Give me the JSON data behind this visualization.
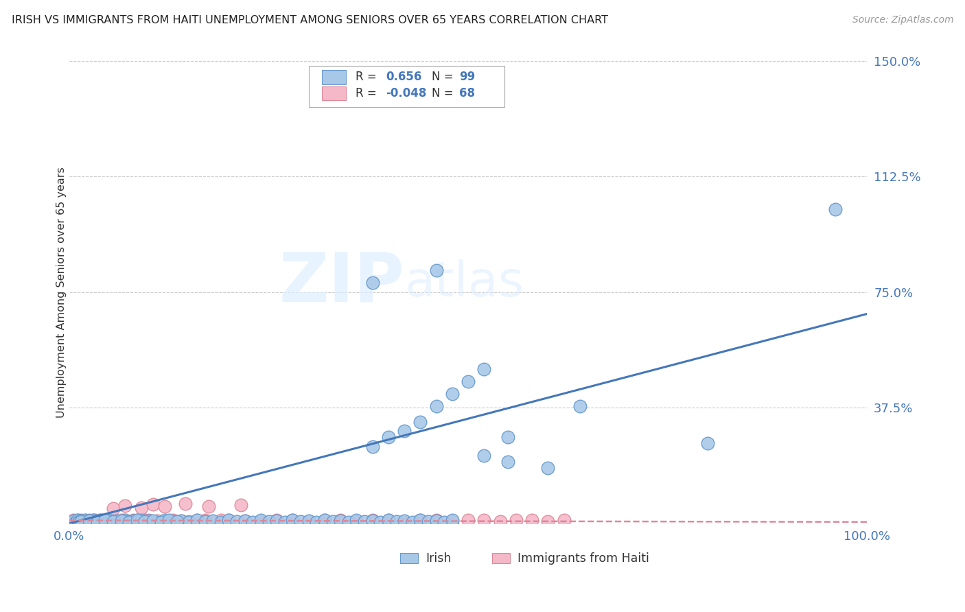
{
  "title": "IRISH VS IMMIGRANTS FROM HAITI UNEMPLOYMENT AMONG SENIORS OVER 65 YEARS CORRELATION CHART",
  "source": "Source: ZipAtlas.com",
  "ylabel": "Unemployment Among Seniors over 65 years",
  "xlim": [
    0.0,
    1.0
  ],
  "ylim": [
    0.0,
    1.5
  ],
  "yticks": [
    0.0,
    0.375,
    0.75,
    1.125,
    1.5
  ],
  "ytick_labels": [
    "",
    "37.5%",
    "75.0%",
    "112.5%",
    "150.0%"
  ],
  "irish_color": "#A8C8E8",
  "irish_edge_color": "#6699CC",
  "haiti_color": "#F5B8C8",
  "haiti_edge_color": "#DD8899",
  "irish_R": 0.656,
  "irish_N": 99,
  "haiti_R": -0.048,
  "haiti_N": 68,
  "irish_line_color": "#4477BB",
  "haiti_line_color": "#DD8899",
  "watermark_zip": "ZIP",
  "watermark_atlas": "atlas",
  "legend_label_irish": "Irish",
  "legend_label_haiti": "Immigrants from Haiti",
  "irish_line_x0": 0.0,
  "irish_line_y0": 0.0,
  "irish_line_x1": 1.0,
  "irish_line_y1": 0.68,
  "haiti_line_x0": 0.0,
  "haiti_line_y0": 0.01,
  "haiti_line_x1": 1.0,
  "haiti_line_y1": 0.005
}
